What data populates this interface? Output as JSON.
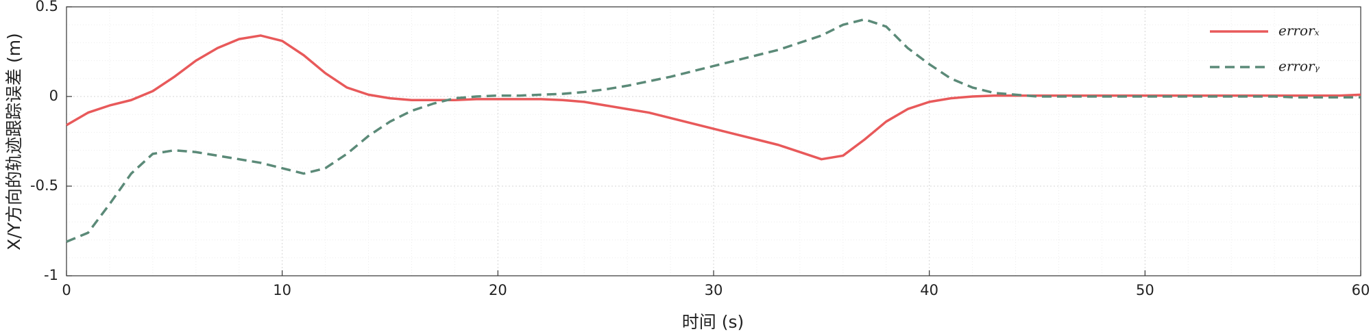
{
  "chart_data": {
    "type": "line",
    "xlabel": "时间 (s)",
    "ylabel": "X/Y方向的轨迹跟踪误差 (m)",
    "x": [
      0,
      1,
      2,
      3,
      4,
      5,
      6,
      7,
      8,
      9,
      10,
      11,
      12,
      13,
      14,
      15,
      16,
      17,
      18,
      19,
      20,
      21,
      22,
      23,
      24,
      25,
      26,
      27,
      28,
      29,
      30,
      31,
      32,
      33,
      34,
      35,
      36,
      37,
      38,
      39,
      40,
      41,
      42,
      43,
      44,
      45,
      46,
      47,
      48,
      49,
      50,
      51,
      52,
      53,
      54,
      55,
      56,
      57,
      58,
      59,
      60
    ],
    "series": [
      {
        "name": "errorₓ",
        "color": "#e8595a",
        "dash": false,
        "values": [
          -0.16,
          -0.09,
          -0.05,
          -0.02,
          0.03,
          0.11,
          0.2,
          0.27,
          0.32,
          0.34,
          0.31,
          0.23,
          0.13,
          0.05,
          0.01,
          -0.01,
          -0.02,
          -0.02,
          -0.02,
          -0.015,
          -0.015,
          -0.015,
          -0.015,
          -0.02,
          -0.03,
          -0.05,
          -0.07,
          -0.09,
          -0.12,
          -0.15,
          -0.18,
          -0.21,
          -0.24,
          -0.27,
          -0.31,
          -0.35,
          -0.33,
          -0.24,
          -0.14,
          -0.07,
          -0.03,
          -0.01,
          0,
          0.005,
          0.005,
          0.005,
          0.005,
          0.005,
          0.005,
          0.005,
          0.005,
          0.005,
          0.005,
          0.005,
          0.005,
          0.005,
          0.005,
          0.005,
          0.005,
          0.005,
          0.01
        ]
      },
      {
        "name": "errorᵧ",
        "color": "#5b8a78",
        "dash": true,
        "values": [
          -0.81,
          -0.76,
          -0.6,
          -0.43,
          -0.32,
          -0.3,
          -0.31,
          -0.33,
          -0.35,
          -0.37,
          -0.4,
          -0.43,
          -0.4,
          -0.32,
          -0.22,
          -0.14,
          -0.08,
          -0.04,
          -0.01,
          0,
          0.005,
          0.005,
          0.01,
          0.015,
          0.025,
          0.04,
          0.06,
          0.085,
          0.11,
          0.14,
          0.17,
          0.2,
          0.23,
          0.26,
          0.3,
          0.34,
          0.4,
          0.43,
          0.39,
          0.27,
          0.18,
          0.1,
          0.05,
          0.02,
          0.01,
          0,
          0,
          0,
          0,
          0,
          0,
          0,
          0,
          0,
          0,
          0,
          0,
          -0.005,
          -0.005,
          -0.005,
          -0.005
        ]
      }
    ],
    "xlim": [
      0,
      60
    ],
    "xticks": [
      0,
      10,
      20,
      30,
      40,
      50,
      60
    ],
    "ylim": [
      -1,
      0.5
    ],
    "yticks": [
      -1,
      -0.5,
      0,
      0.5
    ],
    "grid": true,
    "minor_grid": true,
    "legend": "upper right"
  }
}
